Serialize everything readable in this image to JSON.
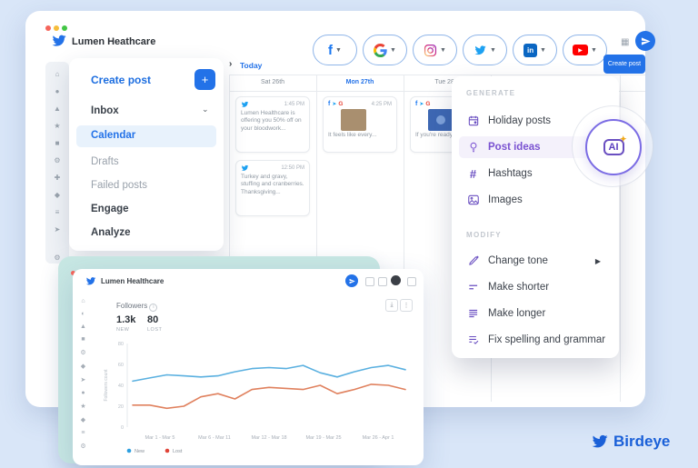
{
  "colors": {
    "accent_blue": "#2372e8",
    "accent_purple": "#6a4fc1",
    "teal_window": "#c7e7e3",
    "chart_new": "#5ab0e0",
    "chart_lost": "#e0815e"
  },
  "footer": {
    "brand": "Birdeye"
  },
  "main_window": {
    "title": "Lumen Heathcare",
    "today_label": "Today",
    "create_post_button": "Create post",
    "channels": [
      "facebook",
      "google",
      "instagram",
      "twitter",
      "linkedin",
      "youtube"
    ],
    "sidebar": {
      "items": [
        {
          "label": "Create post"
        },
        {
          "label": "Inbox"
        },
        {
          "label": "Calendar"
        },
        {
          "label": "Drafts"
        },
        {
          "label": "Failed posts"
        },
        {
          "label": "Engage"
        },
        {
          "label": "Analyze"
        }
      ]
    },
    "calendar": {
      "columns": [
        {
          "label": "Sat 26th"
        },
        {
          "label": "Mon 27th"
        },
        {
          "label": "Tue 28th"
        }
      ],
      "cards": [
        {
          "time": "1:45 PM",
          "text": "Lumen Healthcare is offering you 50% off on your bloodwork..."
        },
        {
          "time": "12:50 PM",
          "text": "Turkey and gravy, stuffing and cranberries. Thanksgiving..."
        },
        {
          "time": "4:25 PM",
          "text": "It feels like every..."
        },
        {
          "time": "",
          "text": "If you're ready f..."
        }
      ]
    },
    "ai_menu": {
      "generate_title": "GENERATE",
      "modify_title": "MODIFY",
      "generate_items": [
        {
          "label": "Holiday posts"
        },
        {
          "label": "Post ideas"
        },
        {
          "label": "Hashtags"
        },
        {
          "label": "Images"
        }
      ],
      "modify_items": [
        {
          "label": "Change tone"
        },
        {
          "label": "Make shorter"
        },
        {
          "label": "Make longer"
        },
        {
          "label": "Fix spelling and grammar"
        }
      ],
      "ai_badge": "AI"
    }
  },
  "analytics_window": {
    "title": "Lumen Healthcare",
    "metric_title": "Followers",
    "stats": [
      {
        "value": "1.3k",
        "label": "NEW"
      },
      {
        "value": "80",
        "label": "LOST"
      }
    ]
  },
  "chart_data": {
    "type": "line",
    "title": "Followers",
    "ylabel": "Followers count",
    "ylim": [
      0,
      80
    ],
    "y_ticks": [
      0,
      20,
      40,
      60,
      80
    ],
    "x_tick_labels": [
      "Mar 1 - Mar 5",
      "Mar 6 - Mar 11",
      "Mar 12 - Mar 18",
      "Mar 19 - Mar 25",
      "Mar 26 - Apr 1"
    ],
    "grid": false,
    "legend_position": "bottom-left",
    "series": [
      {
        "name": "New",
        "color": "#5ab0e0",
        "legend_dot": "#2d9fe0",
        "values": [
          44,
          47,
          50,
          49,
          48,
          49,
          53,
          56,
          57,
          56,
          59,
          52,
          48,
          53,
          57,
          59,
          55
        ]
      },
      {
        "name": "Lost",
        "color": "#e0815e",
        "legend_dot": "#e04438",
        "values": [
          21,
          21,
          18,
          20,
          29,
          32,
          27,
          36,
          38,
          37,
          36,
          40,
          32,
          36,
          41,
          40,
          36
        ]
      }
    ]
  }
}
